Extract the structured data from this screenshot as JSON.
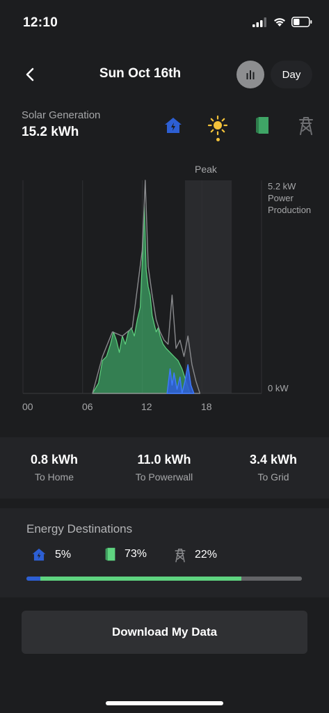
{
  "status_bar": {
    "time": "12:10"
  },
  "header": {
    "title": "Sun Oct 16th",
    "day_label": "Day"
  },
  "summary": {
    "label": "Solar Generation",
    "value": "15.2 kWh"
  },
  "sources": [
    {
      "name": "home-icon",
      "color": "#2d5fd3"
    },
    {
      "name": "sun-icon",
      "color": "#f3c23a"
    },
    {
      "name": "powerwall-icon",
      "color": "#3fa566"
    },
    {
      "name": "grid-tower-icon",
      "color": "#6e6f72"
    }
  ],
  "chart": {
    "peak_label": "Peak",
    "y_max_label": "5.2 kW",
    "y_axis_title_line1": "Power",
    "y_axis_title_line2": "Production",
    "y_min_label": "0 kW",
    "x_ticks": [
      "00",
      "06",
      "12",
      "18"
    ]
  },
  "chart_data": {
    "type": "area",
    "ylim": [
      0,
      5.2
    ],
    "xlim": [
      0,
      24
    ],
    "peak_window": [
      16.3,
      21.0
    ],
    "series": [
      {
        "name": "To Powerwall",
        "color": "#3fa566",
        "x": [
          7.0,
          7.6,
          8.0,
          8.4,
          8.8,
          9.1,
          9.4,
          9.7,
          10.0,
          10.3,
          10.6,
          10.9,
          11.2,
          11.5,
          11.8,
          12.0,
          12.2,
          12.4,
          12.6,
          12.8,
          13.0,
          13.2,
          13.4,
          13.6,
          13.8,
          14.1,
          14.4,
          14.8,
          15.2,
          15.6,
          16.0,
          16.4,
          16.8
        ],
        "y": [
          0.0,
          0.25,
          0.8,
          0.9,
          1.2,
          1.5,
          1.3,
          1.0,
          1.4,
          1.2,
          1.5,
          1.6,
          1.4,
          1.8,
          2.1,
          3.2,
          4.6,
          3.0,
          2.6,
          2.4,
          1.9,
          1.7,
          1.5,
          1.6,
          1.4,
          1.2,
          1.1,
          1.0,
          0.9,
          0.8,
          0.6,
          0.3,
          0.0
        ]
      },
      {
        "name": "Solar Generation",
        "color": "#8a8b8e",
        "x": [
          7.0,
          8.0,
          9.0,
          10.0,
          11.0,
          12.0,
          12.3,
          12.6,
          13.0,
          13.4,
          13.8,
          14.2,
          14.6,
          15.0,
          15.4,
          15.8,
          16.2,
          16.6,
          17.0,
          17.4,
          17.8
        ],
        "y": [
          0.0,
          0.9,
          1.5,
          1.4,
          1.6,
          3.5,
          5.2,
          3.1,
          2.4,
          1.8,
          1.5,
          1.3,
          1.2,
          2.4,
          1.1,
          1.3,
          0.9,
          1.4,
          0.7,
          0.3,
          0.0
        ]
      },
      {
        "name": "To Home",
        "color": "#2d5fd3",
        "x": [
          14.5,
          14.8,
          15.0,
          15.2,
          15.5,
          15.8,
          16.0,
          16.3,
          16.6,
          16.9,
          17.2
        ],
        "y": [
          0.0,
          0.6,
          0.2,
          0.5,
          0.1,
          0.4,
          0.0,
          0.3,
          0.7,
          0.2,
          0.0
        ]
      }
    ]
  },
  "totals": [
    {
      "value": "0.8 kWh",
      "label": "To Home"
    },
    {
      "value": "11.0 kWh",
      "label": "To Powerwall"
    },
    {
      "value": "3.4 kWh",
      "label": "To Grid"
    }
  ],
  "destinations": {
    "title": "Energy Destinations",
    "items": [
      {
        "icon": "home-icon",
        "percent": "5%",
        "share": 5,
        "color": "#2d5fd3"
      },
      {
        "icon": "powerwall-icon",
        "percent": "73%",
        "share": 73,
        "color": "#5fd480"
      },
      {
        "icon": "grid-tower-icon",
        "percent": "22%",
        "share": 22,
        "color": "#636467"
      }
    ]
  },
  "download_label": "Download My Data"
}
